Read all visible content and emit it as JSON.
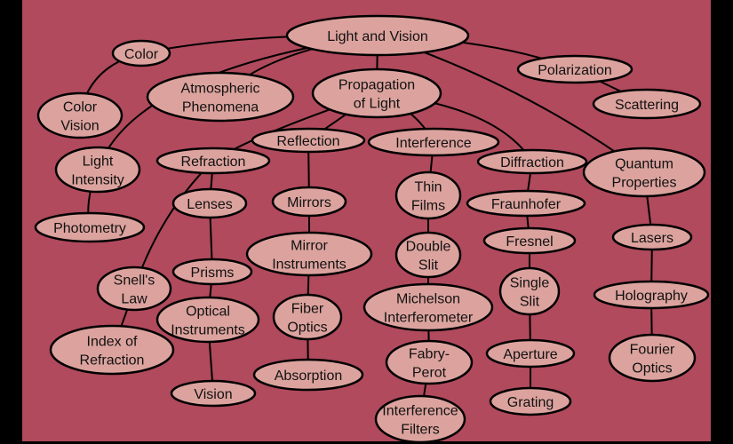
{
  "nodes": {
    "light_and_vision": [
      "Light and Vision"
    ],
    "color": [
      "Color"
    ],
    "polarization": [
      "Polarization"
    ],
    "scattering": [
      "Scattering"
    ],
    "atmospheric_phenomena": [
      "Atmospheric",
      "Phenomena"
    ],
    "propagation_of_light": [
      "Propagation",
      "of Light"
    ],
    "color_vision": [
      "Color",
      "Vision"
    ],
    "light_intensity": [
      "Light",
      "Intensity"
    ],
    "photometry": [
      "Photometry"
    ],
    "refraction": [
      "Refraction"
    ],
    "reflection": [
      "Reflection"
    ],
    "interference": [
      "Interference"
    ],
    "diffraction": [
      "Diffraction"
    ],
    "quantum_properties": [
      "Quantum",
      "Properties"
    ],
    "lenses": [
      "Lenses"
    ],
    "mirrors": [
      "Mirrors"
    ],
    "thin_films": [
      "Thin",
      "Films"
    ],
    "fraunhofer": [
      "Fraunhofer"
    ],
    "fresnel": [
      "Fresnel"
    ],
    "lasers": [
      "Lasers"
    ],
    "mirror_instruments": [
      "Mirror",
      "Instruments"
    ],
    "double_slit": [
      "Double",
      "Slit"
    ],
    "snells_law": [
      "Snell's",
      "Law"
    ],
    "prisms": [
      "Prisms"
    ],
    "single_slit": [
      "Single",
      "Slit"
    ],
    "holography": [
      "Holography"
    ],
    "optical_instruments": [
      "Optical",
      "Instruments"
    ],
    "fiber_optics": [
      "Fiber",
      "Optics"
    ],
    "michelson_interferometer": [
      "Michelson",
      "Interferometer"
    ],
    "index_of_refraction": [
      "Index of",
      "Refraction"
    ],
    "aperture": [
      "Aperture"
    ],
    "fourier_optics": [
      "Fourier",
      "Optics"
    ],
    "fabry_perot": [
      "Fabry-",
      "Perot"
    ],
    "absorption": [
      "Absorption"
    ],
    "vision": [
      "Vision"
    ],
    "grating": [
      "Grating"
    ],
    "interference_filters": [
      "Interference",
      "Filters"
    ]
  },
  "edges": [
    [
      "light_and_vision",
      "color"
    ],
    [
      "light_and_vision",
      "light_intensity"
    ],
    [
      "light_and_vision",
      "atmospheric_phenomena"
    ],
    [
      "light_and_vision",
      "propagation_of_light"
    ],
    [
      "light_and_vision",
      "polarization"
    ],
    [
      "light_and_vision",
      "quantum_properties"
    ],
    [
      "color",
      "color_vision"
    ],
    [
      "polarization",
      "scattering"
    ],
    [
      "light_intensity",
      "photometry"
    ],
    [
      "propagation_of_light",
      "refraction"
    ],
    [
      "propagation_of_light",
      "reflection"
    ],
    [
      "propagation_of_light",
      "interference"
    ],
    [
      "propagation_of_light",
      "diffraction"
    ],
    [
      "refraction",
      "lenses"
    ],
    [
      "refraction",
      "snells_law"
    ],
    [
      "lenses",
      "prisms"
    ],
    [
      "prisms",
      "optical_instruments"
    ],
    [
      "optical_instruments",
      "vision"
    ],
    [
      "snells_law",
      "index_of_refraction"
    ],
    [
      "reflection",
      "mirrors"
    ],
    [
      "mirrors",
      "mirror_instruments"
    ],
    [
      "mirror_instruments",
      "fiber_optics"
    ],
    [
      "fiber_optics",
      "absorption"
    ],
    [
      "interference",
      "thin_films"
    ],
    [
      "thin_films",
      "double_slit"
    ],
    [
      "double_slit",
      "michelson_interferometer"
    ],
    [
      "michelson_interferometer",
      "fabry_perot"
    ],
    [
      "fabry_perot",
      "interference_filters"
    ],
    [
      "diffraction",
      "fraunhofer"
    ],
    [
      "fraunhofer",
      "fresnel"
    ],
    [
      "fresnel",
      "single_slit"
    ],
    [
      "single_slit",
      "aperture"
    ],
    [
      "aperture",
      "grating"
    ],
    [
      "quantum_properties",
      "lasers"
    ],
    [
      "lasers",
      "holography"
    ],
    [
      "holography",
      "fourier_optics"
    ]
  ]
}
